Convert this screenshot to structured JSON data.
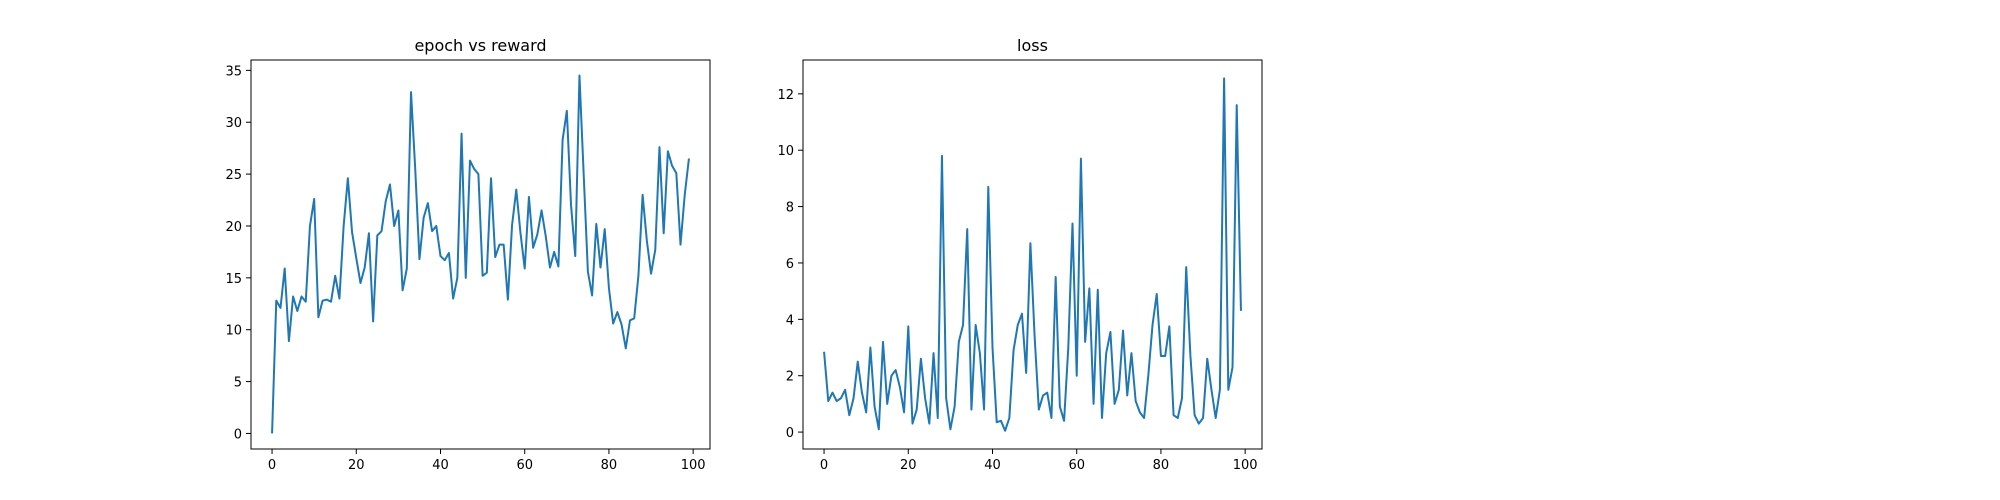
{
  "line_color": "#1f77b4",
  "chart_data": [
    {
      "type": "line",
      "title": "epoch vs reward",
      "xlabel": "",
      "ylabel": "",
      "xlim": [
        -5,
        104
      ],
      "ylim": [
        -1.5,
        36.0
      ],
      "xticks": [
        0,
        20,
        40,
        60,
        80,
        100
      ],
      "yticks": [
        0,
        5,
        10,
        15,
        20,
        25,
        30,
        35
      ],
      "grid": false,
      "series": [
        {
          "x": [
            0,
            1,
            2,
            3,
            4,
            5,
            6,
            7,
            8,
            9,
            10,
            11,
            12,
            13,
            14,
            15,
            16,
            17,
            18,
            19,
            20,
            21,
            22,
            23,
            24,
            25,
            26,
            27,
            28,
            29,
            30,
            31,
            32,
            33,
            34,
            35,
            36,
            37,
            38,
            39,
            40,
            41,
            42,
            43,
            44,
            45,
            46,
            47,
            48,
            49,
            50,
            51,
            52,
            53,
            54,
            55,
            56,
            57,
            58,
            59,
            60,
            61,
            62,
            63,
            64,
            65,
            66,
            67,
            68,
            69,
            70,
            71,
            72,
            73,
            74,
            75,
            76,
            77,
            78,
            79,
            80,
            81,
            82,
            83,
            84,
            85,
            86,
            87,
            88,
            89,
            90,
            91,
            92,
            93,
            94,
            95,
            96,
            97,
            98,
            99
          ],
          "values": [
            0.0,
            12.8,
            12.1,
            15.9,
            8.9,
            13.2,
            11.8,
            13.2,
            12.7,
            20.0,
            22.6,
            11.2,
            12.8,
            12.9,
            12.7,
            15.2,
            13.0,
            20.0,
            24.6,
            19.4,
            16.9,
            14.5,
            16.0,
            19.3,
            10.8,
            19.1,
            19.5,
            22.4,
            24.0,
            20.0,
            21.5,
            13.8,
            15.9,
            32.9,
            25.5,
            16.8,
            20.8,
            22.2,
            19.5,
            20.0,
            17.1,
            16.7,
            17.4,
            13.0,
            15.0,
            28.9,
            15.0,
            26.3,
            25.5,
            25.0,
            15.2,
            15.5,
            24.6,
            17.0,
            18.2,
            18.2,
            12.9,
            20.1,
            23.5,
            19.3,
            15.9,
            22.8,
            17.9,
            19.2,
            21.5,
            19.0,
            16.0,
            17.5,
            16.1,
            28.3,
            31.1,
            22.0,
            17.1,
            34.5,
            25.0,
            15.6,
            13.3,
            20.2,
            16.0,
            19.7,
            14.0,
            10.6,
            11.7,
            10.5,
            8.2,
            10.9,
            11.1,
            15.2,
            23.0,
            18.6,
            15.4,
            17.7,
            27.6,
            19.3,
            27.2,
            25.8,
            25.1,
            18.2,
            23.0,
            26.5
          ]
        }
      ]
    },
    {
      "type": "line",
      "title": "loss",
      "xlabel": "",
      "ylabel": "",
      "xlim": [
        -5,
        104
      ],
      "ylim": [
        -0.6,
        13.2
      ],
      "xticks": [
        0,
        20,
        40,
        60,
        80,
        100
      ],
      "yticks": [
        0,
        2,
        4,
        6,
        8,
        10,
        12
      ],
      "grid": false,
      "series": [
        {
          "x": [
            0,
            1,
            2,
            3,
            4,
            5,
            6,
            7,
            8,
            9,
            10,
            11,
            12,
            13,
            14,
            15,
            16,
            17,
            18,
            19,
            20,
            21,
            22,
            23,
            24,
            25,
            26,
            27,
            28,
            29,
            30,
            31,
            32,
            33,
            34,
            35,
            36,
            37,
            38,
            39,
            40,
            41,
            42,
            43,
            44,
            45,
            46,
            47,
            48,
            49,
            50,
            51,
            52,
            53,
            54,
            55,
            56,
            57,
            58,
            59,
            60,
            61,
            62,
            63,
            64,
            65,
            66,
            67,
            68,
            69,
            70,
            71,
            72,
            73,
            74,
            75,
            76,
            77,
            78,
            79,
            80,
            81,
            82,
            83,
            84,
            85,
            86,
            87,
            88,
            89,
            90,
            91,
            92,
            93,
            94,
            95,
            96,
            97,
            98,
            99
          ],
          "values": [
            2.85,
            1.1,
            1.4,
            1.1,
            1.2,
            1.5,
            0.6,
            1.2,
            2.5,
            1.4,
            0.7,
            3.0,
            0.9,
            0.1,
            3.2,
            1.0,
            2.0,
            2.2,
            1.6,
            0.7,
            3.75,
            0.3,
            0.8,
            2.6,
            1.2,
            0.3,
            2.8,
            0.5,
            9.8,
            1.2,
            0.1,
            0.9,
            3.2,
            3.8,
            7.2,
            0.8,
            3.8,
            2.8,
            0.8,
            8.7,
            3.0,
            0.35,
            0.4,
            0.05,
            0.5,
            2.9,
            3.8,
            4.2,
            2.1,
            6.7,
            3.4,
            0.8,
            1.3,
            1.4,
            0.5,
            5.5,
            0.9,
            0.4,
            3.0,
            7.4,
            2.0,
            9.7,
            3.2,
            5.1,
            1.0,
            5.05,
            0.5,
            2.8,
            3.55,
            1.0,
            1.5,
            3.6,
            1.3,
            2.8,
            1.1,
            0.7,
            0.5,
            2.0,
            3.8,
            4.9,
            2.7,
            2.7,
            3.75,
            0.6,
            0.5,
            1.2,
            5.85,
            2.7,
            0.6,
            0.3,
            0.5,
            2.6,
            1.5,
            0.5,
            1.5,
            12.55,
            1.5,
            2.3,
            11.6,
            4.3
          ]
        }
      ]
    }
  ]
}
